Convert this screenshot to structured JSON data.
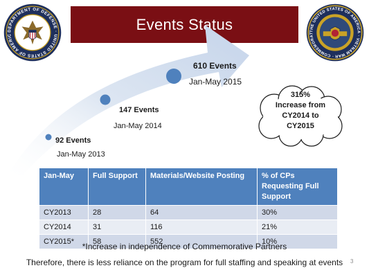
{
  "title": "Events Status",
  "seals": {
    "left": {
      "icon": "department-of-defense-seal-icon",
      "text": "DEPARTMENT OF DEFENSE · UNITED STATES OF AMERICA"
    },
    "right": {
      "icon": "vietnam-war-commemoration-seal-icon",
      "text": "THE UNITED STATES OF AMERICA · VIETNAM WAR · COMMEMORATION"
    }
  },
  "timeline": [
    {
      "count": "92 Events",
      "period": "Jan-May 2013"
    },
    {
      "count": "147 Events",
      "period": "Jan-May 2014"
    },
    {
      "count": "610 Events",
      "period": "Jan-May 2015"
    }
  ],
  "callout": {
    "line1": "315%",
    "line2": "Increase from",
    "line3": "CY2014 to",
    "line4": "CY2015"
  },
  "table": {
    "headers": [
      "Jan-May",
      "Full Support",
      "Materials/Website Posting",
      "% of CPs Requesting Full Support"
    ],
    "rows": [
      [
        "CY2013",
        "28",
        "64",
        "30%"
      ],
      [
        "CY2014",
        "31",
        "116",
        "21%"
      ],
      [
        "CY2015*",
        "58",
        "552",
        "10%"
      ]
    ]
  },
  "footnote": "*Increase in independence of Commemorative Partners",
  "conclusion": "Therefore, there is less reliance on the program for full staffing and speaking at events",
  "page_number": "3",
  "colors": {
    "title_bar": "#7a0f14",
    "table_header": "#4f81bd",
    "row_odd": "#d0d8e8",
    "row_even": "#e9edf4",
    "arrow": "#dde6f2",
    "dots": "#4f81bd",
    "seal_navy": "#1e2f5c",
    "seal_gold": "#c9a227"
  }
}
